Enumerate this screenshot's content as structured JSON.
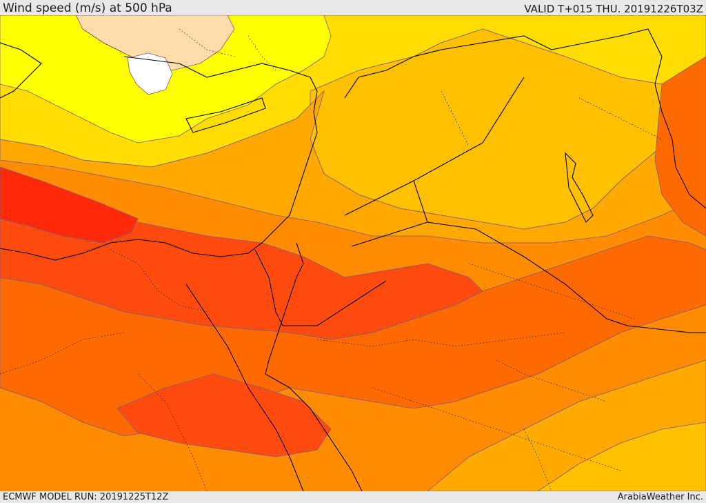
{
  "header": {
    "title": "Wind speed (m/s) at 500 hPa",
    "valid": "VALID T+015 THU. 20191226T03Z"
  },
  "footer": {
    "model_run": "ECMWF MODEL RUN: 20191225T12Z",
    "credit": "ArabiaWeather Inc."
  },
  "map": {
    "field": "wind speed 500 hPa",
    "palette": {
      "white": "#ffffff",
      "peach": "#fddcaa",
      "yellow": "#ffff00",
      "gold": "#ffdd00",
      "amber": "#ffc000",
      "orange_light": "#ffa800",
      "orange": "#ff8c00",
      "orange_dark": "#ff6a00",
      "red_orange": "#ff4a10",
      "red": "#ff2a0a",
      "contour_line": "#4a3a7a",
      "border_line": "#000000"
    }
  }
}
